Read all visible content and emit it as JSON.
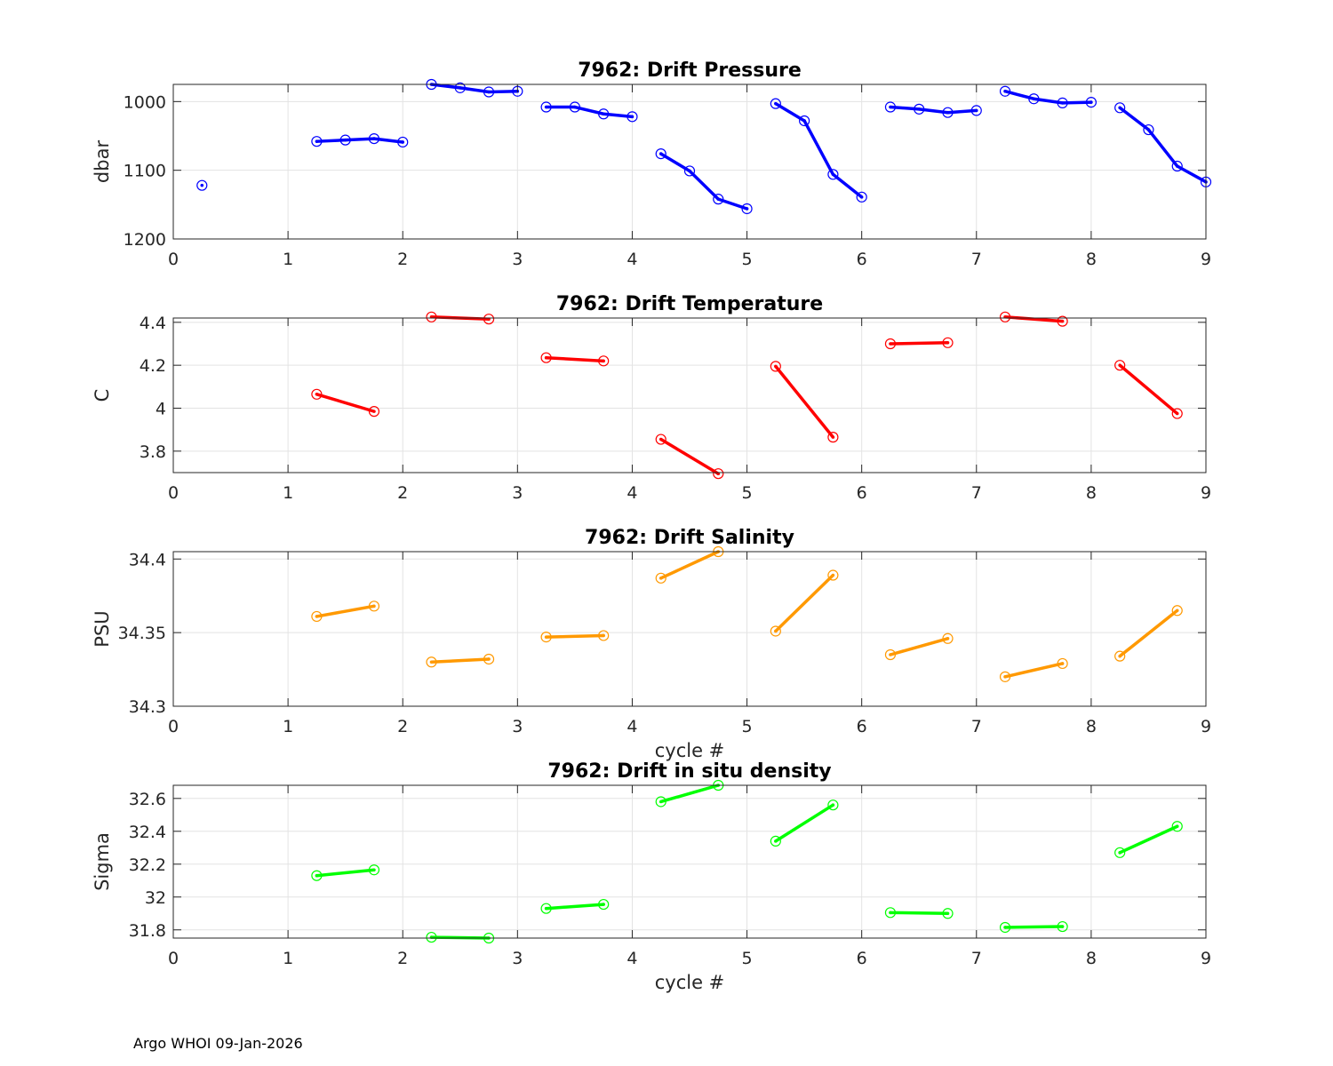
{
  "footer": "Argo WHOI 09-Jan-2026",
  "chart_data": [
    {
      "type": "line",
      "title": "7962: Drift Pressure",
      "xlabel": "",
      "ylabel": "dbar",
      "xlim": [
        0,
        9
      ],
      "ylim": [
        975,
        1200
      ],
      "y_reversed": true,
      "xticks": [
        0,
        1,
        2,
        3,
        4,
        5,
        6,
        7,
        8,
        9
      ],
      "yticks": [
        1000,
        1100,
        1200
      ],
      "ytick_labels": [
        "1000",
        "1100",
        "1200"
      ],
      "grid": true,
      "color": "#0000ff",
      "segments": [
        {
          "x": [
            0.25
          ],
          "y": [
            1122
          ]
        },
        {
          "x": [
            1.25,
            1.5,
            1.75,
            2.0
          ],
          "y": [
            1058,
            1056,
            1054,
            1059
          ]
        },
        {
          "x": [
            2.25,
            2.5,
            2.75,
            3.0
          ],
          "y": [
            975,
            980,
            986,
            985
          ]
        },
        {
          "x": [
            3.25,
            3.5,
            3.75,
            4.0
          ],
          "y": [
            1008,
            1008,
            1018,
            1022
          ]
        },
        {
          "x": [
            4.25,
            4.5,
            4.75,
            5.0
          ],
          "y": [
            1076,
            1101,
            1142,
            1156
          ]
        },
        {
          "x": [
            5.25,
            5.5,
            5.75,
            6.0
          ],
          "y": [
            1003,
            1028,
            1106,
            1139
          ]
        },
        {
          "x": [
            6.25,
            6.5,
            6.75,
            7.0
          ],
          "y": [
            1008,
            1011,
            1016,
            1013
          ]
        },
        {
          "x": [
            7.25,
            7.5,
            7.75,
            8.0
          ],
          "y": [
            985,
            996,
            1002,
            1001
          ]
        },
        {
          "x": [
            8.25,
            8.5,
            8.75,
            9.0
          ],
          "y": [
            1009,
            1041,
            1094,
            1117
          ]
        }
      ]
    },
    {
      "type": "line",
      "title": "7962: Drift Temperature",
      "xlabel": "",
      "ylabel": "C",
      "xlim": [
        0,
        9
      ],
      "ylim": [
        3.7,
        4.42
      ],
      "y_reversed": false,
      "xticks": [
        0,
        1,
        2,
        3,
        4,
        5,
        6,
        7,
        8,
        9
      ],
      "yticks": [
        3.8,
        4.0,
        4.2,
        4.4
      ],
      "ytick_labels": [
        "3.8",
        "4",
        "4.2",
        "4.4"
      ],
      "grid": true,
      "color": "#ff0000",
      "segments": [
        {
          "x": [
            1.25,
            1.75
          ],
          "y": [
            4.065,
            3.985
          ]
        },
        {
          "x": [
            2.25,
            2.75
          ],
          "y": [
            4.425,
            4.415
          ]
        },
        {
          "x": [
            3.25,
            3.75
          ],
          "y": [
            4.235,
            4.22
          ]
        },
        {
          "x": [
            4.25,
            4.75
          ],
          "y": [
            3.855,
            3.695
          ]
        },
        {
          "x": [
            5.25,
            5.75
          ],
          "y": [
            4.195,
            3.865
          ]
        },
        {
          "x": [
            6.25,
            6.75
          ],
          "y": [
            4.3,
            4.305
          ]
        },
        {
          "x": [
            7.25,
            7.75
          ],
          "y": [
            4.425,
            4.405
          ]
        },
        {
          "x": [
            8.25,
            8.75
          ],
          "y": [
            4.2,
            3.975
          ]
        }
      ]
    },
    {
      "type": "line",
      "title": "7962: Drift Salinity",
      "xlabel": "cycle #",
      "ylabel": "PSU",
      "xlim": [
        0,
        9
      ],
      "ylim": [
        34.3,
        34.405
      ],
      "y_reversed": false,
      "xticks": [
        0,
        1,
        2,
        3,
        4,
        5,
        6,
        7,
        8,
        9
      ],
      "yticks": [
        34.3,
        34.35,
        34.4
      ],
      "ytick_labels": [
        "34.3",
        "34.35",
        "34.4"
      ],
      "grid": true,
      "color": "#ff9900",
      "segments": [
        {
          "x": [
            1.25,
            1.75
          ],
          "y": [
            34.361,
            34.368
          ]
        },
        {
          "x": [
            2.25,
            2.75
          ],
          "y": [
            34.33,
            34.332
          ]
        },
        {
          "x": [
            3.25,
            3.75
          ],
          "y": [
            34.347,
            34.348
          ]
        },
        {
          "x": [
            4.25,
            4.75
          ],
          "y": [
            34.387,
            34.405
          ]
        },
        {
          "x": [
            5.25,
            5.75
          ],
          "y": [
            34.351,
            34.389
          ]
        },
        {
          "x": [
            6.25,
            6.75
          ],
          "y": [
            34.335,
            34.346
          ]
        },
        {
          "x": [
            7.25,
            7.75
          ],
          "y": [
            34.32,
            34.329
          ]
        },
        {
          "x": [
            8.25,
            8.75
          ],
          "y": [
            34.334,
            34.365
          ]
        }
      ]
    },
    {
      "type": "line",
      "title": "7962: Drift in situ density",
      "xlabel": "cycle #",
      "ylabel": "Sigma",
      "xlim": [
        0,
        9
      ],
      "ylim": [
        31.75,
        32.68
      ],
      "y_reversed": false,
      "xticks": [
        0,
        1,
        2,
        3,
        4,
        5,
        6,
        7,
        8,
        9
      ],
      "yticks": [
        31.8,
        32.0,
        32.2,
        32.4,
        32.6
      ],
      "ytick_labels": [
        "31.8",
        "32",
        "32.2",
        "32.4",
        "32.6"
      ],
      "grid": true,
      "color": "#00ff00",
      "segments": [
        {
          "x": [
            1.25,
            1.75
          ],
          "y": [
            32.13,
            32.165
          ]
        },
        {
          "x": [
            2.25,
            2.75
          ],
          "y": [
            31.755,
            31.75
          ]
        },
        {
          "x": [
            3.25,
            3.75
          ],
          "y": [
            31.93,
            31.955
          ]
        },
        {
          "x": [
            4.25,
            4.75
          ],
          "y": [
            32.58,
            32.68
          ]
        },
        {
          "x": [
            5.25,
            5.75
          ],
          "y": [
            32.34,
            32.56
          ]
        },
        {
          "x": [
            6.25,
            6.75
          ],
          "y": [
            31.905,
            31.9
          ]
        },
        {
          "x": [
            7.25,
            7.75
          ],
          "y": [
            31.815,
            31.82
          ]
        },
        {
          "x": [
            8.25,
            8.75
          ],
          "y": [
            32.27,
            32.43
          ]
        }
      ]
    }
  ]
}
